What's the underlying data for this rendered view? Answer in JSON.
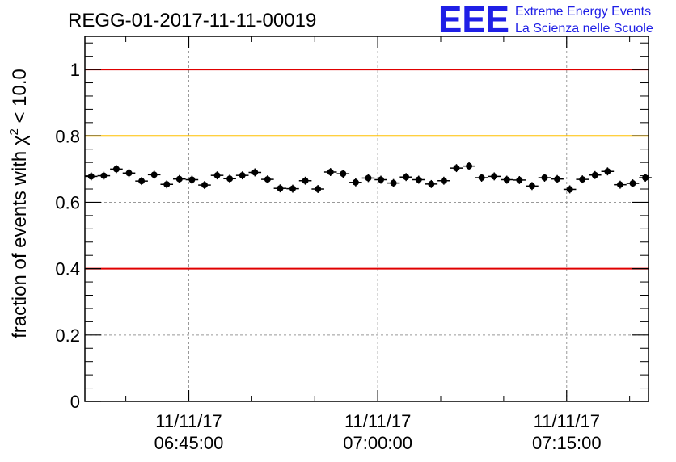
{
  "logo": {
    "mark": "EEE",
    "line1": "Extreme Energy Events",
    "line2": "La Scienza nelle Scuole",
    "color": "#1f1fe6"
  },
  "chart_data": {
    "type": "scatter",
    "title": "REGG-01-2017-11-11-00019",
    "ylabel": "fraction of events with χ² < 10.0",
    "ylabel_parts": {
      "prefix": "fraction of events with ",
      "symbol": "χ",
      "sup": "2",
      "suffix": " < 10.0"
    },
    "xlabel": "",
    "x_unit": "minutes",
    "xlim": [
      "06:36:45",
      "07:21:30"
    ],
    "ylim": [
      0,
      1.1
    ],
    "y_ticks": [
      0,
      0.2,
      0.4,
      0.6,
      0.8,
      1
    ],
    "y_tick_labels": [
      "0",
      "0.2",
      "0.4",
      "0.6",
      "0.8",
      "1"
    ],
    "x_ticks": [
      {
        "time": "06:45:00",
        "date": "11/11/17"
      },
      {
        "time": "07:00:00",
        "date": "11/11/17"
      },
      {
        "time": "07:15:00",
        "date": "11/11/17"
      }
    ],
    "grid": true,
    "reference_lines": [
      {
        "y": 1.0,
        "color": "#e00000"
      },
      {
        "y": 0.8,
        "color": "#ffc000"
      },
      {
        "y": 0.4,
        "color": "#e00000"
      }
    ],
    "bin_width_seconds": 60,
    "series": [
      {
        "color": "#000000",
        "x": [
          "06:37:15",
          "06:38:15",
          "06:39:15",
          "06:40:15",
          "06:41:15",
          "06:42:15",
          "06:43:15",
          "06:44:15",
          "06:45:15",
          "06:46:15",
          "06:47:15",
          "06:48:15",
          "06:49:15",
          "06:50:15",
          "06:51:15",
          "06:52:15",
          "06:53:15",
          "06:54:15",
          "06:55:15",
          "06:56:15",
          "06:57:15",
          "06:58:15",
          "06:59:15",
          "07:00:15",
          "07:01:15",
          "07:02:15",
          "07:03:15",
          "07:04:15",
          "07:05:15",
          "07:06:15",
          "07:07:15",
          "07:08:15",
          "07:09:15",
          "07:10:15",
          "07:11:15",
          "07:12:15",
          "07:13:15",
          "07:14:15",
          "07:15:15",
          "07:16:15",
          "07:17:15",
          "07:18:15",
          "07:19:15",
          "07:20:15",
          "07:21:15"
        ],
        "y": [
          0.678,
          0.68,
          0.7,
          0.688,
          0.664,
          0.683,
          0.654,
          0.67,
          0.668,
          0.652,
          0.681,
          0.671,
          0.681,
          0.69,
          0.669,
          0.642,
          0.641,
          0.665,
          0.64,
          0.691,
          0.686,
          0.66,
          0.673,
          0.668,
          0.658,
          0.676,
          0.668,
          0.655,
          0.665,
          0.703,
          0.709,
          0.674,
          0.678,
          0.668,
          0.667,
          0.649,
          0.674,
          0.67,
          0.639,
          0.669,
          0.682,
          0.693,
          0.653,
          0.657,
          0.674
        ],
        "y_err": [
          0.012,
          0.012,
          0.012,
          0.012,
          0.012,
          0.012,
          0.012,
          0.012,
          0.012,
          0.012,
          0.012,
          0.012,
          0.012,
          0.012,
          0.012,
          0.012,
          0.012,
          0.012,
          0.012,
          0.012,
          0.012,
          0.012,
          0.012,
          0.012,
          0.012,
          0.012,
          0.012,
          0.012,
          0.012,
          0.012,
          0.012,
          0.012,
          0.012,
          0.012,
          0.012,
          0.012,
          0.012,
          0.012,
          0.012,
          0.012,
          0.012,
          0.012,
          0.012,
          0.012,
          0.012
        ]
      }
    ]
  }
}
